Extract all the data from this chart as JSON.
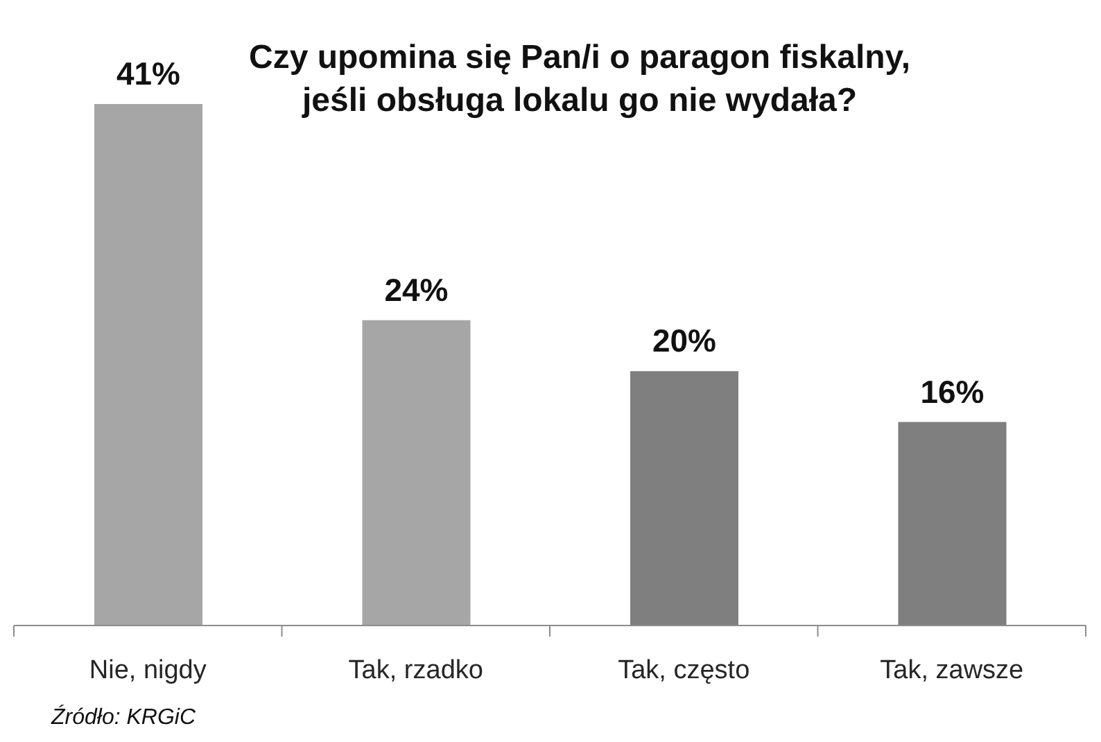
{
  "chart_data": {
    "type": "bar",
    "title": "Czy upomina się Pan/i o paragon fiskalny,\njeśli obsługa lokalu go nie wydała?",
    "categories": [
      "Nie, nigdy",
      "Tak, rzadko",
      "Tak, często",
      "Tak, zawsze"
    ],
    "values": [
      41,
      24,
      20,
      16
    ],
    "value_labels": [
      "41%",
      "24%",
      "20%",
      "16%"
    ],
    "colors": [
      "#a6a6a6",
      "#a6a6a6",
      "#7f7f7f",
      "#7f7f7f"
    ],
    "annotations": [
      "Źródło: KRGiC"
    ]
  }
}
